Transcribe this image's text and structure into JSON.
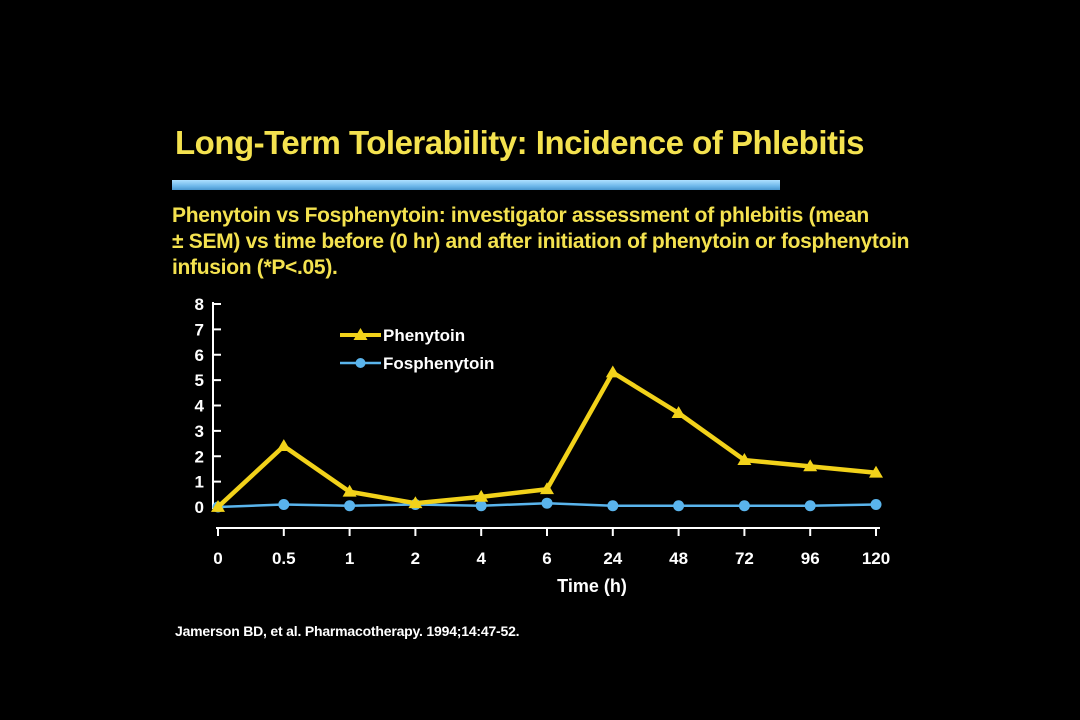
{
  "slide": {
    "title": "Long-Term Tolerability: Incidence of Phlebitis",
    "subtitle_lines": [
      "Phenytoin vs Fosphenytoin: investigator assessment of phlebitis (mean",
      "± SEM) vs time before (0 hr) and after initiation of phenytoin or fosphenytoin",
      "infusion (*P<.05)."
    ],
    "citation": "Jamerson BD, et al. Pharmacotherapy. 1994;14:47-52."
  },
  "colors": {
    "background": "#000000",
    "title_text": "#f4e24f",
    "rule": "#7cc3f0",
    "phenytoin": "#f2d21a",
    "fosphenytoin": "#5ab4ec",
    "axis": "#ffffff"
  },
  "chart_data": {
    "type": "line",
    "title": "",
    "xlabel": "Time (h)",
    "ylabel": "",
    "categories": [
      "0",
      "0.5",
      "1",
      "2",
      "4",
      "6",
      "24",
      "48",
      "72",
      "96",
      "120"
    ],
    "ylim": [
      0,
      8
    ],
    "yticks": [
      0,
      1,
      2,
      3,
      4,
      5,
      6,
      7,
      8
    ],
    "grid": false,
    "legend_position": "top-left",
    "series": [
      {
        "name": "Phenytoin",
        "marker": "triangle",
        "color": "#f2d21a",
        "values": [
          0,
          2.4,
          0.6,
          0.15,
          0.4,
          0.7,
          5.3,
          3.7,
          1.85,
          1.6,
          1.35
        ]
      },
      {
        "name": "Fosphenytoin",
        "marker": "circle",
        "color": "#5ab4ec",
        "values": [
          0,
          0.1,
          0.05,
          0.1,
          0.05,
          0.15,
          0.05,
          0.05,
          0.05,
          0.05,
          0.1
        ]
      }
    ]
  }
}
